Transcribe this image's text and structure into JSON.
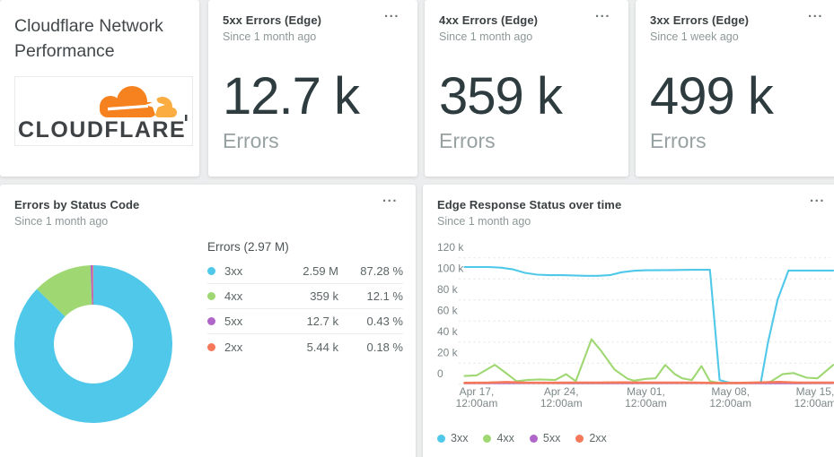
{
  "theme": {
    "background": "#ecedee",
    "card": "#ffffff",
    "title_color": "#3b4042",
    "subtitle_color": "#8e9899",
    "value_color": "#2e3c3f",
    "series_colors": {
      "3xx": "#4fc8e9",
      "4xx": "#9fd873",
      "5xx": "#b066c9",
      "2xx": "#f4795a"
    },
    "cloudflare_orange": "#f6821f",
    "cloudflare_light_orange": "#fbad41"
  },
  "icons": {
    "card_menu": "...",
    "logo": "cloudflare-cloud"
  },
  "header_card": {
    "title": "Cloudflare Network Performance",
    "logo_text": "CLOUDFLARE"
  },
  "kpis": [
    {
      "title": "5xx Errors (Edge)",
      "subtitle": "Since 1 month ago",
      "value": "12.7 k",
      "unit": "Errors"
    },
    {
      "title": "4xx Errors (Edge)",
      "subtitle": "Since 1 month ago",
      "value": "359 k",
      "unit": "Errors"
    },
    {
      "title": "3xx Errors (Edge)",
      "subtitle": "Since 1 week ago",
      "value": "499 k",
      "unit": "Errors"
    }
  ],
  "donut_card": {
    "title": "Errors by Status Code",
    "subtitle": "Since 1 month ago",
    "table_header": "Errors (2.97 M)"
  },
  "line_card": {
    "title": "Edge Response Status over time",
    "subtitle": "Since 1 month ago"
  },
  "chart_data": [
    {
      "type": "pie",
      "variant": "donut",
      "title": "Errors by Status Code",
      "total_label": "Errors (2.97 M)",
      "segments": [
        {
          "label": "3xx",
          "value_text": "2.59 M",
          "pct": 87.28,
          "pct_text": "87.28 %",
          "color": "#4fc8e9"
        },
        {
          "label": "4xx",
          "value_text": "359 k",
          "pct": 12.1,
          "pct_text": "12.1 %",
          "color": "#9fd873"
        },
        {
          "label": "5xx",
          "value_text": "12.7 k",
          "pct": 0.43,
          "pct_text": "0.43 %",
          "color": "#b066c9"
        },
        {
          "label": "2xx",
          "value_text": "5.44 k",
          "pct": 0.18,
          "pct_text": "0.18 %",
          "color": "#f4795a"
        }
      ]
    },
    {
      "type": "line",
      "title": "Edge Response Status over time",
      "unit": "errors (thousands)",
      "ylim_k": [
        0,
        120
      ],
      "grid": "dashed",
      "legend_position": "bottom",
      "y_ticks": [
        {
          "v": 120,
          "label": "120 k"
        },
        {
          "v": 100,
          "label": "100 k"
        },
        {
          "v": 80,
          "label": "80 k"
        },
        {
          "v": 60,
          "label": "60 k"
        },
        {
          "v": 40,
          "label": "40 k"
        },
        {
          "v": 20,
          "label": "20 k"
        },
        {
          "v": 0,
          "label": "0"
        }
      ],
      "x_ticks": [
        {
          "day": 1,
          "label": [
            "Apr 17,",
            "12:00am"
          ]
        },
        {
          "day": 8,
          "label": [
            "Apr 24,",
            "12:00am"
          ]
        },
        {
          "day": 15,
          "label": [
            "May 01,",
            "12:00am"
          ]
        },
        {
          "day": 22,
          "label": [
            "May 08,",
            "12:00am"
          ]
        },
        {
          "day": 29,
          "label": [
            "May 15,",
            "12:00am"
          ]
        }
      ],
      "series": [
        {
          "name": "4xx",
          "color": "#9fd873",
          "points": [
            [
              0,
              6.5
            ],
            [
              1,
              7
            ],
            [
              2.5,
              16
            ],
            [
              3.3,
              10
            ],
            [
              4.3,
              2
            ],
            [
              5.2,
              3
            ],
            [
              6.2,
              3.5
            ],
            [
              7.5,
              3
            ],
            [
              8.4,
              8
            ],
            [
              9.2,
              2
            ],
            [
              10.5,
              38
            ],
            [
              11.3,
              28
            ],
            [
              12.4,
              12
            ],
            [
              13.5,
              4
            ],
            [
              14,
              2.5
            ],
            [
              15,
              4
            ],
            [
              15.8,
              4.5
            ],
            [
              16.6,
              16
            ],
            [
              17.4,
              8
            ],
            [
              18,
              4.5
            ],
            [
              18.8,
              3
            ],
            [
              19.6,
              15
            ],
            [
              20.3,
              2
            ],
            [
              21,
              0.6
            ],
            [
              22,
              0.4
            ],
            [
              23.5,
              0.4
            ],
            [
              24.6,
              0.4
            ],
            [
              25.3,
              1.5
            ],
            [
              26.3,
              8
            ],
            [
              27.2,
              9
            ],
            [
              28.3,
              5
            ],
            [
              29.2,
              4.5
            ],
            [
              30.5,
              16
            ]
          ]
        },
        {
          "name": "3xx",
          "color": "#4fc8e9",
          "points": [
            [
              0,
              100
            ],
            [
              1,
              100
            ],
            [
              2,
              100
            ],
            [
              3,
              99.5
            ],
            [
              4,
              98
            ],
            [
              5,
              95
            ],
            [
              6,
              93.5
            ],
            [
              7,
              93
            ],
            [
              8,
              93
            ],
            [
              9,
              92.8
            ],
            [
              10,
              92.5
            ],
            [
              11,
              92.5
            ],
            [
              12,
              93
            ],
            [
              13,
              95.5
            ],
            [
              14,
              96.8
            ],
            [
              15,
              97.2
            ],
            [
              17,
              97.4
            ],
            [
              19,
              97.6
            ],
            [
              20.3,
              97.6
            ],
            [
              21.1,
              3
            ],
            [
              21.7,
              1.2
            ],
            [
              22,
              0.8
            ],
            [
              23,
              0.6
            ],
            [
              24.5,
              0.5
            ],
            [
              25.1,
              35
            ],
            [
              25.9,
              72
            ],
            [
              26.8,
              97
            ],
            [
              28,
              97
            ],
            [
              30.5,
              97
            ]
          ]
        },
        {
          "name": "5xx",
          "color": "#b066c9",
          "points": [
            [
              0,
              0.25
            ],
            [
              6,
              0.3
            ],
            [
              12,
              0.25
            ],
            [
              18,
              0.3
            ],
            [
              24,
              0.25
            ],
            [
              30.5,
              0.3
            ]
          ]
        },
        {
          "name": "2xx",
          "color": "#f4795a",
          "points": [
            [
              0,
              0.5
            ],
            [
              2,
              0.7
            ],
            [
              3.5,
              1.2
            ],
            [
              5,
              0.7
            ],
            [
              7,
              0.6
            ],
            [
              9,
              0.8
            ],
            [
              11,
              0.7
            ],
            [
              13,
              0.9
            ],
            [
              15,
              0.7
            ],
            [
              17,
              0.8
            ],
            [
              19,
              0.7
            ],
            [
              21,
              0.4
            ],
            [
              23,
              0.5
            ],
            [
              25,
              1
            ],
            [
              26,
              1.3
            ],
            [
              27.5,
              0.8
            ],
            [
              29,
              0.7
            ],
            [
              30.5,
              0.8
            ]
          ]
        }
      ],
      "legend": [
        "3xx",
        "4xx",
        "5xx",
        "2xx"
      ]
    }
  ]
}
